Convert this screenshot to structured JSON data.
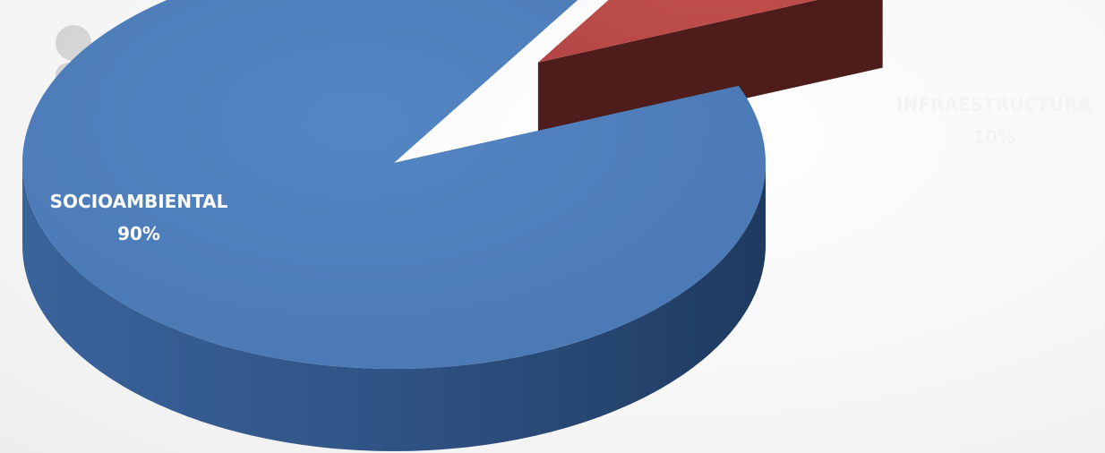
{
  "chart_data": {
    "type": "pie",
    "title": "",
    "categories": [
      "SOCIOAMBIENTAL",
      "INFRAESTRUCTURA"
    ],
    "values": [
      90,
      10
    ],
    "value_labels": [
      "90%",
      "10%"
    ],
    "exploded": [
      false,
      true
    ],
    "style": "3d",
    "legend": "none",
    "colors": {
      "SOCIOAMBIENTAL": "#4f81bd",
      "INFRAESTRUCTURA": "#c0504d"
    }
  }
}
